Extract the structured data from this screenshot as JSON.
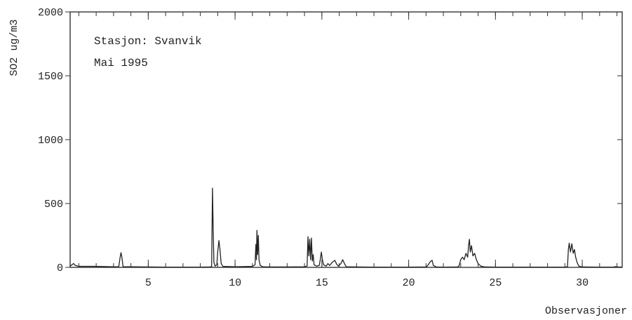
{
  "chart_data": {
    "type": "line",
    "title": "",
    "xlabel": "Observasjoner",
    "ylabel": "SO2 ug/m3",
    "annotations": [
      "Stasjon: Svanvik",
      "Mai 1995"
    ],
    "xlim": [
      0.5,
      32.3
    ],
    "ylim": [
      0,
      2000
    ],
    "x_ticks": [
      5,
      10,
      15,
      20,
      25,
      30
    ],
    "y_ticks": [
      0,
      500,
      1000,
      1500,
      2000
    ],
    "grid": false,
    "series": [
      {
        "name": "",
        "color": "#222222",
        "points": [
          [
            0.5,
            10
          ],
          [
            0.6,
            20
          ],
          [
            0.7,
            30
          ],
          [
            0.8,
            15
          ],
          [
            1.0,
            8
          ],
          [
            2.0,
            8
          ],
          [
            3.0,
            5
          ],
          [
            3.3,
            5
          ],
          [
            3.38,
            80
          ],
          [
            3.43,
            115
          ],
          [
            3.48,
            80
          ],
          [
            3.55,
            5
          ],
          [
            4.0,
            5
          ],
          [
            5.0,
            3
          ],
          [
            6.0,
            2
          ],
          [
            7.0,
            2
          ],
          [
            8.0,
            2
          ],
          [
            8.5,
            3
          ],
          [
            8.65,
            5
          ],
          [
            8.7,
            620
          ],
          [
            8.74,
            300
          ],
          [
            8.78,
            40
          ],
          [
            8.85,
            10
          ],
          [
            8.95,
            20
          ],
          [
            9.0,
            120
          ],
          [
            9.07,
            210
          ],
          [
            9.13,
            140
          ],
          [
            9.2,
            30
          ],
          [
            9.3,
            8
          ],
          [
            10.0,
            5
          ],
          [
            11.0,
            8
          ],
          [
            11.15,
            20
          ],
          [
            11.2,
            180
          ],
          [
            11.23,
            60
          ],
          [
            11.26,
            290
          ],
          [
            11.3,
            100
          ],
          [
            11.34,
            250
          ],
          [
            11.38,
            60
          ],
          [
            11.45,
            15
          ],
          [
            11.6,
            5
          ],
          [
            12.0,
            3
          ],
          [
            13.0,
            3
          ],
          [
            14.0,
            5
          ],
          [
            14.15,
            10
          ],
          [
            14.2,
            240
          ],
          [
            14.25,
            90
          ],
          [
            14.3,
            220
          ],
          [
            14.35,
            60
          ],
          [
            14.4,
            230
          ],
          [
            14.45,
            50
          ],
          [
            14.5,
            100
          ],
          [
            14.55,
            20
          ],
          [
            14.7,
            10
          ],
          [
            14.85,
            15
          ],
          [
            14.92,
            70
          ],
          [
            14.97,
            120
          ],
          [
            15.03,
            60
          ],
          [
            15.1,
            20
          ],
          [
            15.25,
            10
          ],
          [
            15.35,
            30
          ],
          [
            15.45,
            15
          ],
          [
            15.6,
            40
          ],
          [
            15.75,
            55
          ],
          [
            15.85,
            25
          ],
          [
            15.95,
            10
          ],
          [
            16.1,
            30
          ],
          [
            16.2,
            60
          ],
          [
            16.3,
            30
          ],
          [
            16.4,
            5
          ],
          [
            17.0,
            3
          ],
          [
            18.0,
            2
          ],
          [
            19.0,
            2
          ],
          [
            20.0,
            2
          ],
          [
            21.0,
            3
          ],
          [
            21.1,
            15
          ],
          [
            21.25,
            45
          ],
          [
            21.35,
            55
          ],
          [
            21.42,
            15
          ],
          [
            21.6,
            3
          ],
          [
            22.0,
            2
          ],
          [
            22.8,
            3
          ],
          [
            22.9,
            10
          ],
          [
            23.0,
            60
          ],
          [
            23.1,
            80
          ],
          [
            23.2,
            60
          ],
          [
            23.3,
            110
          ],
          [
            23.4,
            80
          ],
          [
            23.45,
            170
          ],
          [
            23.5,
            220
          ],
          [
            23.55,
            120
          ],
          [
            23.62,
            170
          ],
          [
            23.7,
            90
          ],
          [
            23.8,
            110
          ],
          [
            23.9,
            60
          ],
          [
            24.0,
            30
          ],
          [
            24.15,
            10
          ],
          [
            24.4,
            3
          ],
          [
            25.0,
            2
          ],
          [
            26.0,
            2
          ],
          [
            27.0,
            2
          ],
          [
            28.0,
            2
          ],
          [
            29.0,
            2
          ],
          [
            29.15,
            5
          ],
          [
            29.2,
            140
          ],
          [
            29.25,
            190
          ],
          [
            29.32,
            120
          ],
          [
            29.4,
            185
          ],
          [
            29.48,
            110
          ],
          [
            29.55,
            140
          ],
          [
            29.62,
            80
          ],
          [
            29.7,
            40
          ],
          [
            29.8,
            10
          ],
          [
            30.0,
            3
          ],
          [
            31.0,
            2
          ],
          [
            31.8,
            2
          ],
          [
            31.9,
            6
          ],
          [
            32.0,
            3
          ],
          [
            32.3,
            2
          ]
        ]
      }
    ]
  }
}
